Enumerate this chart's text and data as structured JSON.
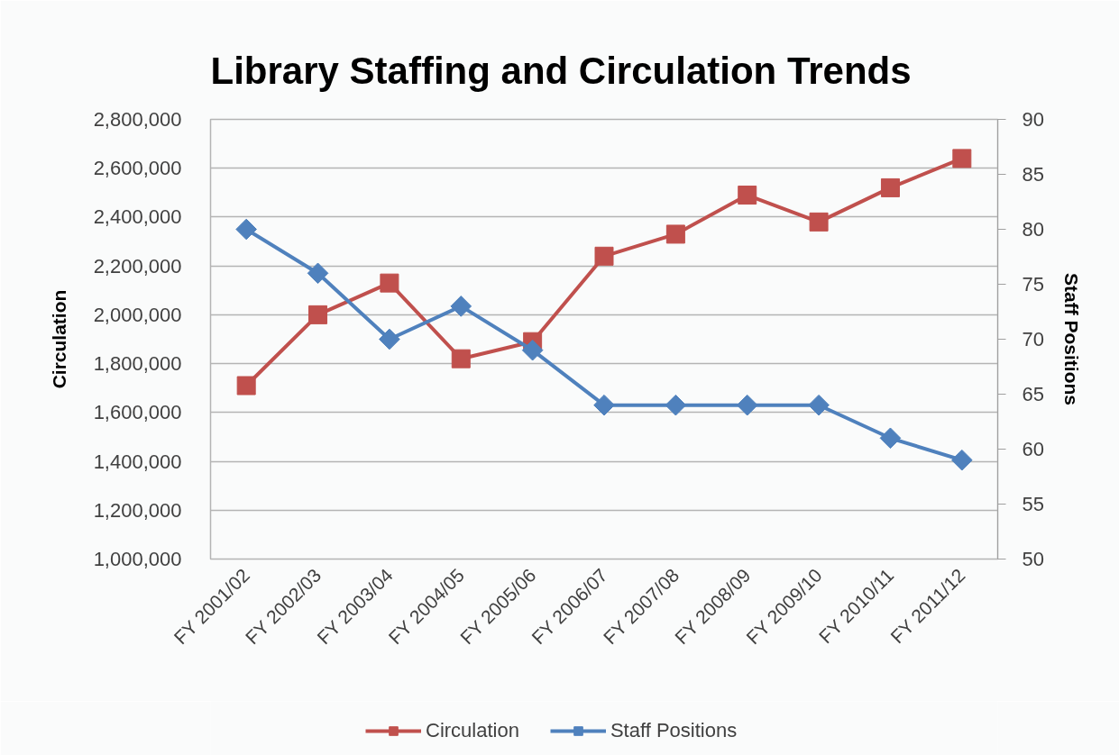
{
  "chart_data": {
    "type": "line",
    "title": "Library Staffing and Circulation Trends",
    "ylabel": "Circulation",
    "y2label": "Staff Positions",
    "categories": [
      "FY 2001/02",
      "FY 2002/03",
      "FY 2003/04",
      "FY 2004/05",
      "FY 2005/06",
      "FY 2006/07",
      "FY 2007/08",
      "FY 2008/09",
      "FY 2009/10",
      "FY 2010/11",
      "FY 2011/12"
    ],
    "series": [
      {
        "name": "Circulation",
        "color": "#c0504d",
        "marker": "square",
        "values": [
          1710000,
          2000000,
          2130000,
          1820000,
          1890000,
          2240000,
          2330000,
          2490000,
          2380000,
          2520000,
          2640000
        ]
      },
      {
        "name": "Staff Positions",
        "color": "#4f81bd",
        "marker": "diamond",
        "axis": "y2",
        "values": [
          80,
          76,
          70,
          73,
          69,
          64,
          64,
          64,
          64,
          61,
          59
        ]
      }
    ],
    "ylim": [
      1000000,
      2800000
    ],
    "yticks": [
      {
        "value": 1000000,
        "label": "1,000,000"
      },
      {
        "value": 1200000,
        "label": "1,200,000"
      },
      {
        "value": 1400000,
        "label": "1,400,000"
      },
      {
        "value": 1600000,
        "label": "1,600,000"
      },
      {
        "value": 1800000,
        "label": "1,800,000"
      },
      {
        "value": 2000000,
        "label": "2,000,000"
      },
      {
        "value": 2200000,
        "label": "2,200,000"
      },
      {
        "value": 2400000,
        "label": "2,400,000"
      },
      {
        "value": 2600000,
        "label": "2,600,000"
      },
      {
        "value": 2800000,
        "label": "2,800,000"
      }
    ],
    "y2lim": [
      50,
      90
    ],
    "y2ticks": [
      50,
      55,
      60,
      65,
      70,
      75,
      80,
      85,
      90
    ],
    "grid": "y",
    "legend": "bottom",
    "line_style": "solid"
  }
}
